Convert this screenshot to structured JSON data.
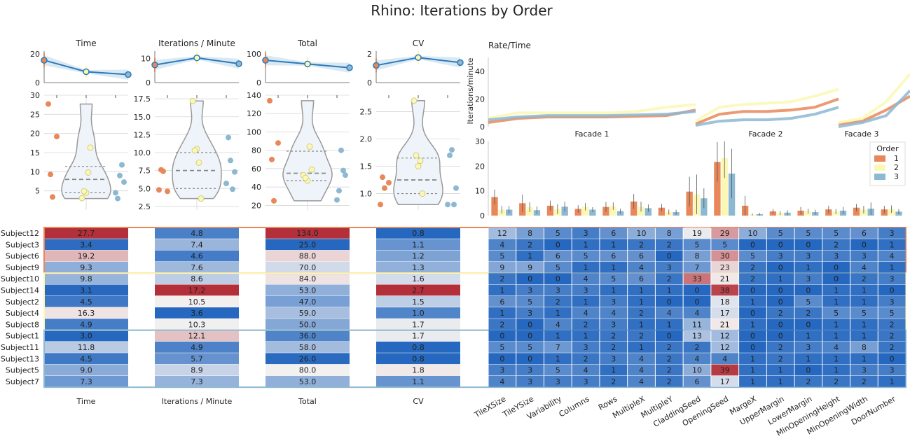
{
  "title": "Rhino: Iterations by Order",
  "colors": {
    "order1": "#e8885a",
    "order2": "#fcf8b4",
    "order3": "#8db8d2",
    "trend": "#2c79b8",
    "band": "#c9dff0",
    "hot": "#b3303a",
    "cold": "#2668bf",
    "mid": "#f4f2f2"
  },
  "chart_data": [
    {
      "type": "scatter",
      "panel": "Time",
      "title": "Time",
      "trend_title": "Time",
      "trend_ylim": [
        0,
        22
      ],
      "trend_yticks": [
        "0",
        "20"
      ],
      "trend_values": [
        15.6,
        7.6,
        5.6
      ],
      "ylim": [
        0,
        30
      ],
      "yticks": [
        "5",
        "10",
        "15",
        "20",
        "25",
        "30"
      ],
      "quartiles": [
        4.5,
        8.0,
        11.4
      ],
      "groups": [
        {
          "order": "1",
          "values": [
            27.7,
            3.4,
            19.2,
            9.3
          ]
        },
        {
          "order": "2",
          "values": [
            9.8,
            3.1,
            4.5,
            16.3,
            4.9
          ]
        },
        {
          "order": "3",
          "values": [
            3.0,
            11.8,
            4.5,
            9.0,
            7.3
          ]
        }
      ]
    },
    {
      "type": "scatter",
      "panel": "Iterations / Minute",
      "title": "Iterations / Minute",
      "trend_ylim": [
        0,
        13
      ],
      "trend_yticks": [
        "0",
        "10"
      ],
      "trend_values": [
        7.3,
        10.2,
        7.8
      ],
      "ylim": [
        2,
        18
      ],
      "yticks": [
        "2.5",
        "5.0",
        "7.5",
        "10.0",
        "12.5",
        "15.0",
        "17.5"
      ],
      "quartiles": [
        5.0,
        7.5,
        10.0
      ],
      "groups": [
        {
          "order": "1",
          "values": [
            4.8,
            7.4,
            4.6,
            7.6
          ]
        },
        {
          "order": "2",
          "values": [
            8.6,
            17.2,
            10.5,
            3.6,
            10.3
          ]
        },
        {
          "order": "3",
          "values": [
            12.1,
            4.9,
            5.7,
            8.9,
            7.3
          ]
        }
      ]
    },
    {
      "type": "scatter",
      "panel": "Total",
      "title": "Total",
      "trend_ylim": [
        0,
        110
      ],
      "trend_yticks": [
        "0",
        "100"
      ],
      "trend_values": [
        78,
        65,
        52
      ],
      "ylim": [
        15,
        140
      ],
      "yticks": [
        "20",
        "40",
        "60",
        "80",
        "100",
        "120",
        "140"
      ],
      "quartiles": [
        47.0,
        55.0,
        79.0
      ],
      "groups": [
        {
          "order": "1",
          "values": [
            134.0,
            25.0,
            88.0,
            70.0
          ]
        },
        {
          "order": "2",
          "values": [
            84.0,
            53.0,
            47.0,
            59.0,
            50.0
          ]
        },
        {
          "order": "3",
          "values": [
            36.0,
            58.0,
            26.0,
            80.0,
            53.0
          ]
        }
      ]
    },
    {
      "type": "scatter",
      "panel": "CV",
      "title": "CV",
      "trend_ylim": [
        0,
        2.2
      ],
      "trend_yticks": [
        "0",
        "2"
      ],
      "trend_values": [
        1.2,
        1.75,
        1.4
      ],
      "ylim": [
        0.7,
        2.8
      ],
      "yticks": [
        "1.0",
        "1.5",
        "2.0",
        "2.5"
      ],
      "quartiles": [
        1.0,
        1.25,
        1.65
      ],
      "groups": [
        {
          "order": "1",
          "values": [
            0.8,
            1.1,
            1.2,
            1.3
          ]
        },
        {
          "order": "2",
          "values": [
            1.6,
            2.7,
            1.5,
            1.0,
            1.7
          ]
        },
        {
          "order": "3",
          "values": [
            1.7,
            0.8,
            0.8,
            1.8,
            1.1
          ]
        }
      ]
    },
    {
      "type": "line",
      "panel": "Rate/Time",
      "title": "Rate/Time",
      "ylabel": "Iterations/minute",
      "ylim": [
        0,
        50
      ],
      "yticks": [
        "0",
        "20",
        "40"
      ],
      "facets": [
        "Facade 1",
        "Facade 2",
        "Facade 3"
      ],
      "series": [
        {
          "order": "1",
          "facets": [
            [
              3,
              6,
              7,
              7,
              7,
              7.5,
              8,
              12
            ],
            [
              2,
              9,
              11,
              11,
              12,
              14,
              20
            ],
            [
              2,
              4,
              12,
              22
            ]
          ]
        },
        {
          "order": "2",
          "facets": [
            [
              6,
              10,
              10,
              10,
              10,
              11,
              14,
              16
            ],
            [
              4,
              14,
              16,
              17,
              18,
              22,
              27
            ],
            [
              3,
              6,
              18,
              38
            ]
          ]
        },
        {
          "order": "3",
          "facets": [
            [
              5,
              7,
              8,
              8,
              8,
              8.5,
              9,
              11
            ],
            [
              1,
              4,
              5,
              5,
              6,
              9,
              14
            ],
            [
              0,
              3,
              8,
              26
            ]
          ]
        }
      ]
    },
    {
      "type": "bar",
      "panel": "Parameter changes by order",
      "ylim": [
        0,
        30
      ],
      "yticks": [
        "0",
        "10",
        "20",
        "30"
      ],
      "legend_title": "Order",
      "legend_placement": "top-right",
      "categories": [
        "TileXSize",
        "TileYSize",
        "Variability",
        "Columns",
        "Rows",
        "MultipleX",
        "MultipleY",
        "CladdingSeed",
        "OpeningSeed",
        "MargeX",
        "UpperMargin",
        "LowerMargin",
        "MinOpeningHeight",
        "MinOpeningWidth",
        "DoorNumber"
      ],
      "series": [
        {
          "name": "1",
          "values": [
            7.5,
            5.0,
            4.0,
            2.7,
            3.5,
            5.7,
            3.2,
            9.7,
            21.7,
            4.0,
            1.7,
            2.0,
            2.5,
            3.2,
            2.5
          ],
          "errors": [
            3,
            3.5,
            2,
            1.5,
            2,
            3,
            1.5,
            6,
            8,
            4,
            1,
            1.5,
            1.5,
            1.5,
            1.5
          ]
        },
        {
          "name": "2",
          "values": [
            2.4,
            3.4,
            2.6,
            3.6,
            3.8,
            3.6,
            1.4,
            8.6,
            23.2,
            0.4,
            1.0,
            1.8,
            1.6,
            2.4,
            2.6
          ],
          "errors": [
            1.5,
            2,
            2,
            1.5,
            1.5,
            2,
            1,
            8,
            8,
            0.5,
            0.8,
            1,
            1,
            1.5,
            1.5
          ]
        },
        {
          "name": "3",
          "values": [
            2.4,
            2.2,
            3.6,
            2.4,
            1.8,
            3.0,
            1.4,
            7.0,
            17.0,
            0.6,
            1.2,
            1.4,
            2.0,
            2.8,
            1.6
          ],
          "errors": [
            1.5,
            1.5,
            2,
            1,
            1,
            1.5,
            1,
            4,
            10,
            0.5,
            1,
            1,
            1.5,
            2.5,
            1
          ]
        }
      ]
    },
    {
      "type": "heatmap",
      "panel": "Subject metrics",
      "subjects": [
        "Subject12",
        "Subject3",
        "Subject6",
        "Subject9",
        "Subject10",
        "Subject14",
        "Subject2",
        "Subject4",
        "Subject8",
        "Subject1",
        "Subject11",
        "Subject13",
        "Subject5",
        "Subject7"
      ],
      "order_groups": [
        [
          "Subject12",
          "Subject3",
          "Subject6",
          "Subject9"
        ],
        [
          "Subject10",
          "Subject14",
          "Subject2",
          "Subject4",
          "Subject8"
        ],
        [
          "Subject1",
          "Subject11",
          "Subject13",
          "Subject5",
          "Subject7"
        ]
      ],
      "columns": [
        {
          "label": "Time",
          "values": [
            "27.7",
            "3.4",
            "19.2",
            "9.3",
            "9.8",
            "3.1",
            "4.5",
            "16.3",
            "4.9",
            "3.0",
            "11.8",
            "4.5",
            "9.0",
            "7.3"
          ],
          "range": [
            3.0,
            27.7
          ]
        },
        {
          "label": "Iterations / Minute",
          "values": [
            "4.8",
            "7.4",
            "4.6",
            "7.6",
            "8.6",
            "17.2",
            "10.5",
            "3.6",
            "10.3",
            "12.1",
            "4.9",
            "5.7",
            "8.9",
            "7.3"
          ],
          "range": [
            3.6,
            17.2
          ]
        },
        {
          "label": "Total",
          "values": [
            "134.0",
            "25.0",
            "88.0",
            "70.0",
            "84.0",
            "53.0",
            "47.0",
            "59.0",
            "50.0",
            "36.0",
            "58.0",
            "26.0",
            "80.0",
            "53.0"
          ],
          "range": [
            25.0,
            134.0
          ]
        },
        {
          "label": "CV",
          "values": [
            "0.8",
            "1.1",
            "1.2",
            "1.3",
            "1.6",
            "2.7",
            "1.5",
            "1.0",
            "1.7",
            "1.7",
            "0.8",
            "0.8",
            "1.8",
            "1.1"
          ],
          "range": [
            0.8,
            2.7
          ]
        }
      ]
    },
    {
      "type": "heatmap",
      "panel": "Parameter counts",
      "vmax": 40,
      "columns": [
        "TileXSize",
        "TileYSize",
        "Variability",
        "Columns",
        "Rows",
        "MultipleX",
        "MultipleY",
        "CladdingSeed",
        "OpeningSeed",
        "MargeX",
        "UpperMargin",
        "LowerMargin",
        "MinOpeningHeight",
        "MinOpeningWidth",
        "DoorNumber"
      ],
      "rows": [
        [
          12,
          8,
          5,
          3,
          6,
          10,
          8,
          19,
          29,
          10,
          5,
          5,
          5,
          6,
          3
        ],
        [
          4,
          2,
          0,
          1,
          1,
          2,
          2,
          5,
          5,
          0,
          0,
          0,
          2,
          0,
          1
        ],
        [
          5,
          1,
          6,
          5,
          6,
          6,
          0,
          8,
          30,
          5,
          3,
          3,
          3,
          3,
          4
        ],
        [
          9,
          9,
          5,
          1,
          1,
          4,
          3,
          7,
          23,
          2,
          0,
          1,
          0,
          4,
          1
        ],
        [
          2,
          0,
          0,
          4,
          5,
          6,
          2,
          33,
          21,
          2,
          1,
          3,
          0,
          2,
          3
        ],
        [
          1,
          3,
          3,
          3,
          1,
          1,
          1,
          0,
          38,
          0,
          0,
          0,
          1,
          1,
          0
        ],
        [
          6,
          5,
          2,
          1,
          3,
          1,
          0,
          0,
          18,
          1,
          0,
          5,
          1,
          1,
          3
        ],
        [
          1,
          3,
          1,
          4,
          4,
          2,
          4,
          4,
          17,
          0,
          2,
          2,
          5,
          5,
          5
        ],
        [
          2,
          0,
          4,
          2,
          3,
          1,
          1,
          11,
          21,
          1,
          0,
          0,
          1,
          1,
          2
        ],
        [
          0,
          0,
          1,
          1,
          2,
          2,
          0,
          13,
          12,
          0,
          0,
          1,
          1,
          1,
          2
        ],
        [
          5,
          5,
          7,
          3,
          2,
          1,
          2,
          2,
          12,
          0,
          2,
          3,
          4,
          8,
          2
        ],
        [
          0,
          0,
          1,
          2,
          3,
          4,
          2,
          4,
          4,
          1,
          2,
          1,
          1,
          1,
          0
        ],
        [
          3,
          3,
          5,
          4,
          1,
          4,
          2,
          10,
          39,
          1,
          1,
          0,
          1,
          3,
          3
        ],
        [
          4,
          3,
          3,
          3,
          2,
          4,
          2,
          6,
          17,
          1,
          1,
          2,
          2,
          2,
          1
        ]
      ]
    }
  ]
}
